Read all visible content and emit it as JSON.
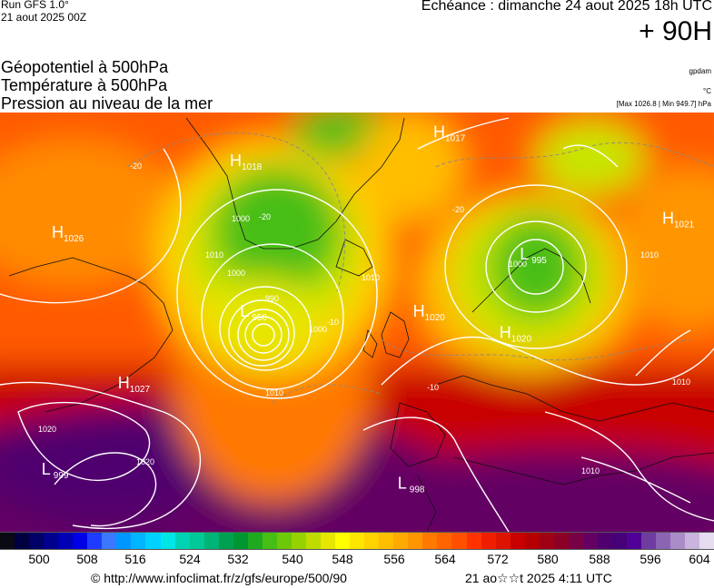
{
  "header": {
    "run": "Run GFS 1.0°",
    "run_date": "21 aout 2025 00Z",
    "valid": "Echéance : dimanche 24 aout 2025 18h UTC",
    "lead": "+ 90H",
    "source_code": "gpdam",
    "temp_unit": "°C",
    "pressure_range": "[Max 1026.8 | Min 949.7] hPa"
  },
  "params": [
    "Géopotentiel à 500hPa",
    "Température à 500hPa",
    "Pression au niveau de la mer"
  ],
  "map": {
    "centers": [
      {
        "type": "H",
        "value": "1026",
        "lat": 63,
        "lon": -60
      },
      {
        "type": "H",
        "value": "1018",
        "lat": 73,
        "lon": -25
      },
      {
        "type": "H",
        "value": "1017",
        "lat": 77,
        "lon": 15
      },
      {
        "type": "H",
        "value": "1021",
        "lat": 65,
        "lon": 60
      },
      {
        "type": "H",
        "value": "1027",
        "lat": 42,
        "lon": -47
      },
      {
        "type": "L",
        "value": "950",
        "lat": 52,
        "lon": -23
      },
      {
        "type": "L",
        "value": "995",
        "lat": 60,
        "lon": 32
      },
      {
        "type": "H",
        "value": "1020",
        "lat": 52,
        "lon": 11
      },
      {
        "type": "H",
        "value": "1020",
        "lat": 49,
        "lon": 28
      },
      {
        "type": "L",
        "value": "999",
        "lat": 30,
        "lon": -62
      },
      {
        "type": "L",
        "value": "998",
        "lat": 28,
        "lon": 8
      }
    ],
    "isobar_labels": [
      "1010",
      "1010",
      "1000",
      "990",
      "1000",
      "1010",
      "1000",
      "1020",
      "1020",
      "1010",
      "1010",
      "1010",
      "1000"
    ],
    "temp_labels": [
      "-20",
      "-20",
      "-20",
      "-10",
      "-10"
    ]
  },
  "scale": {
    "colors": [
      "#0a0a14",
      "#000040",
      "#000066",
      "#00008c",
      "#0000b4",
      "#0000e6",
      "#1e3cff",
      "#3c78ff",
      "#0096ff",
      "#00b4ff",
      "#00d2ff",
      "#00e6e6",
      "#00d2b4",
      "#00c896",
      "#00b478",
      "#00a050",
      "#009632",
      "#1eaa1e",
      "#46be14",
      "#6ec80a",
      "#96d200",
      "#bedc00",
      "#e6e600",
      "#ffff00",
      "#ffe600",
      "#ffd200",
      "#ffbe00",
      "#ffaa00",
      "#ff9600",
      "#ff7800",
      "#ff6400",
      "#ff5000",
      "#ff3200",
      "#f01e00",
      "#dc1400",
      "#c80000",
      "#b40000",
      "#a00014",
      "#8c0028",
      "#780046",
      "#640064",
      "#50006e",
      "#460078",
      "#500096",
      "#6e3ca0",
      "#8c64b4",
      "#aa8cc8",
      "#c8b4dc",
      "#e6dcf0"
    ],
    "labels": [
      "500",
      "508",
      "516",
      "524",
      "532",
      "540",
      "548",
      "556",
      "564",
      "572",
      "580",
      "588",
      "596",
      "604"
    ]
  },
  "footer": {
    "url": "© http://www.infoclimat.fr/z/gfs/europe/500/90",
    "generated": "21 ao☆☆t 2025  4:11 UTC"
  }
}
